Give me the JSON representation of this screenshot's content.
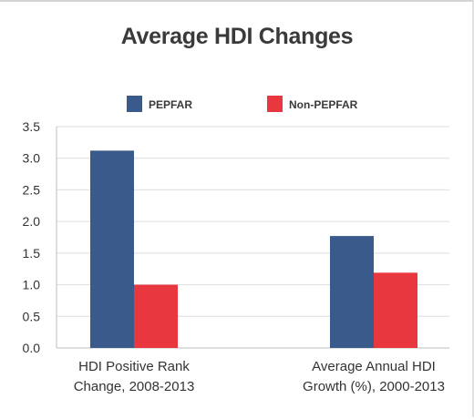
{
  "chart_data": {
    "type": "bar",
    "title": "Average HDI Changes",
    "categories": [
      [
        "HDI Positive Rank",
        "Change, 2008-2013"
      ],
      [
        "Average Annual HDI",
        "Growth (%), 2000-2013"
      ]
    ],
    "series": [
      {
        "name": "PEPFAR",
        "color": "#3b5a8c",
        "values": [
          3.12,
          1.77
        ]
      },
      {
        "name": "Non-PEPFAR",
        "color": "#e8373f",
        "values": [
          1.0,
          1.19
        ]
      }
    ],
    "ylim": [
      0,
      3.5
    ],
    "yticks": [
      "0.0",
      "0.5",
      "1.0",
      "1.5",
      "2.0",
      "2.5",
      "3.0",
      "3.5"
    ],
    "grid": true,
    "legend_position": "top-center"
  }
}
